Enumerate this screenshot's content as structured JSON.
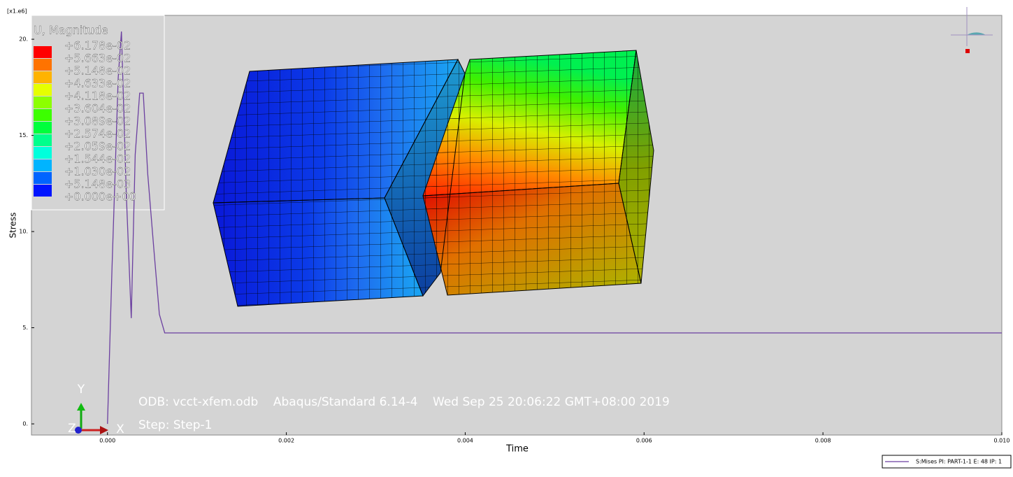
{
  "chart_data": {
    "type": "line",
    "x_label": "Time",
    "y_label": "Stress",
    "y_multiplier": "[x1.e6]",
    "xlim": [
      -0.00085,
      0.01
    ],
    "ylim": [
      -0.58,
      21.24
    ],
    "xticks": [
      {
        "value": 0,
        "label": "0.000"
      },
      {
        "value": 0.002,
        "label": "0.002"
      },
      {
        "value": 0.004,
        "label": "0.004"
      },
      {
        "value": 0.006,
        "label": "0.006"
      },
      {
        "value": 0.008,
        "label": "0.008"
      },
      {
        "value": 0.01,
        "label": "0.010"
      }
    ],
    "yticks": [
      {
        "value": 0,
        "label": "0."
      },
      {
        "value": 5,
        "label": "5."
      },
      {
        "value": 10,
        "label": "10."
      },
      {
        "value": 15,
        "label": "15."
      },
      {
        "value": 20,
        "label": "20."
      }
    ],
    "x": [
      0,
      5e-05,
      0.00012,
      0.000156,
      0.00021,
      0.000266,
      0.00031,
      0.00036,
      0.0004,
      0.00045,
      0.00052,
      0.00058,
      0.00064,
      0.01
    ],
    "series": [
      {
        "name": "S:Mises PI: PART-1-1 E: 48 IP: 1",
        "color": "#6b3fa0",
        "values": [
          0,
          8,
          18,
          20.4,
          12,
          5.5,
          14,
          17.2,
          17.2,
          13,
          9,
          5.7,
          4.73,
          4.73
        ]
      }
    ]
  },
  "contour_legend": {
    "title": "U, Magnitude",
    "values": [
      0.06178,
      0.05663,
      0.05148,
      0.04633,
      0.04118,
      0.03604,
      0.03089,
      0.02574,
      0.02059,
      0.01544,
      0.0103,
      0.005148,
      0
    ],
    "value_labels": [
      "+6.178e-02",
      "+5.663e-02",
      "+5.148e-02",
      "+4.633e-02",
      "+4.118e-02",
      "+3.604e-02",
      "+3.089e-02",
      "+2.574e-02",
      "+2.059e-02",
      "+1.544e-02",
      "+1.030e-02",
      "+5.148e-03",
      "+0.000e+00"
    ],
    "colors": [
      "#ff0000",
      "#ff7300",
      "#ffb300",
      "#e6ff00",
      "#8cff00",
      "#3cff00",
      "#00ff3c",
      "#00ff8c",
      "#00ffdc",
      "#00b4ff",
      "#0064ff",
      "#0014ff"
    ]
  },
  "info": {
    "odb": "ODB: vcct-xfem.odb    Abaqus/Standard 6.14-4    Wed Sep 25 20:06:22 GMT+08:00 2019",
    "step": "Step: Step-1"
  },
  "triad": {
    "y": "Y",
    "x": "X",
    "z": "Z"
  }
}
